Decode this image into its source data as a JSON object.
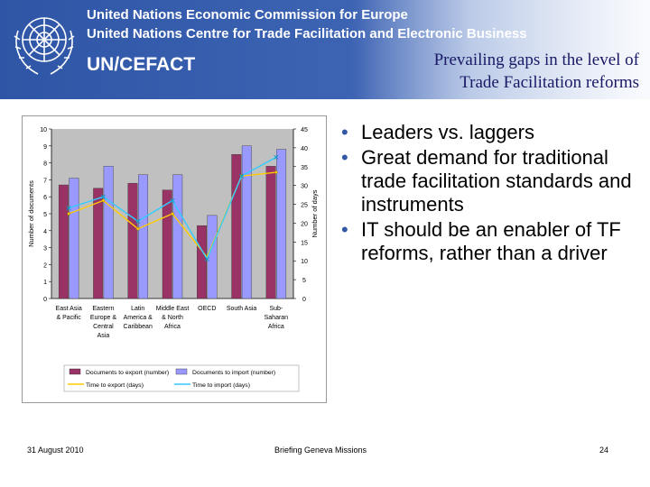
{
  "header": {
    "org_line1": "United Nations Economic Commission for Europe",
    "org_line2": "United Nations Centre for Trade Facilitation and Electronic Business",
    "brand": "UN/CEFACT",
    "title_line1": "Prevailing gaps in the level of",
    "title_line2": "Trade Facilitation reforms",
    "colors": {
      "header_blue": "#2f56a6",
      "title_navy": "#1a1a66"
    }
  },
  "bullets": [
    "Leaders vs. laggers",
    "Great demand for traditional trade facilitation standards and instruments",
    "IT should be an enabler of TF reforms, rather than a driver"
  ],
  "footer": {
    "date": "31 August 2010",
    "center": "Briefing Geneva Missions",
    "page": "24"
  },
  "chart_data": {
    "type": "bar",
    "categories": [
      [
        "East Asia",
        "& Pacific"
      ],
      [
        "Eastern",
        "Europe &",
        "Central",
        "Asia"
      ],
      [
        "Latin",
        "America &",
        "Caribbean"
      ],
      [
        "Middle East",
        "& North",
        "Africa"
      ],
      [
        "OECD"
      ],
      [
        "South Asia"
      ],
      [
        "Sub-",
        "Saharan",
        "Africa"
      ]
    ],
    "ylabel": "Number of documents",
    "y2label": "Number of days",
    "ylim": [
      0,
      10
    ],
    "y2lim": [
      0,
      45
    ],
    "y_ticks": [
      "0",
      "1",
      "2",
      "3",
      "4",
      "5",
      "6",
      "7",
      "8",
      "9",
      "10"
    ],
    "y2_ticks": [
      "0",
      "5",
      "10",
      "15",
      "20",
      "25",
      "30",
      "35",
      "40",
      "45"
    ],
    "bar_series": [
      {
        "name": "Documents to export (number)",
        "values": [
          6.7,
          6.5,
          6.8,
          6.4,
          4.3,
          8.5,
          7.8
        ],
        "color": "#993366"
      },
      {
        "name": "Documents to import (number)",
        "values": [
          7.1,
          7.8,
          7.3,
          7.3,
          4.9,
          9.0,
          8.8
        ],
        "color": "#9999ff"
      }
    ],
    "line_series": [
      {
        "name": "Time to export (days)",
        "values": [
          22.5,
          26,
          18.5,
          22.5,
          11,
          32.5,
          33.5
        ],
        "color": "#ffcc00"
      },
      {
        "name": "Time to import (days)",
        "values": [
          24,
          27,
          20.5,
          26,
          10.5,
          32.5,
          37.5
        ],
        "color": "#33ccff"
      }
    ],
    "legend_position": "bottom",
    "grid": false,
    "plot_bg": "#c0c0c0"
  }
}
